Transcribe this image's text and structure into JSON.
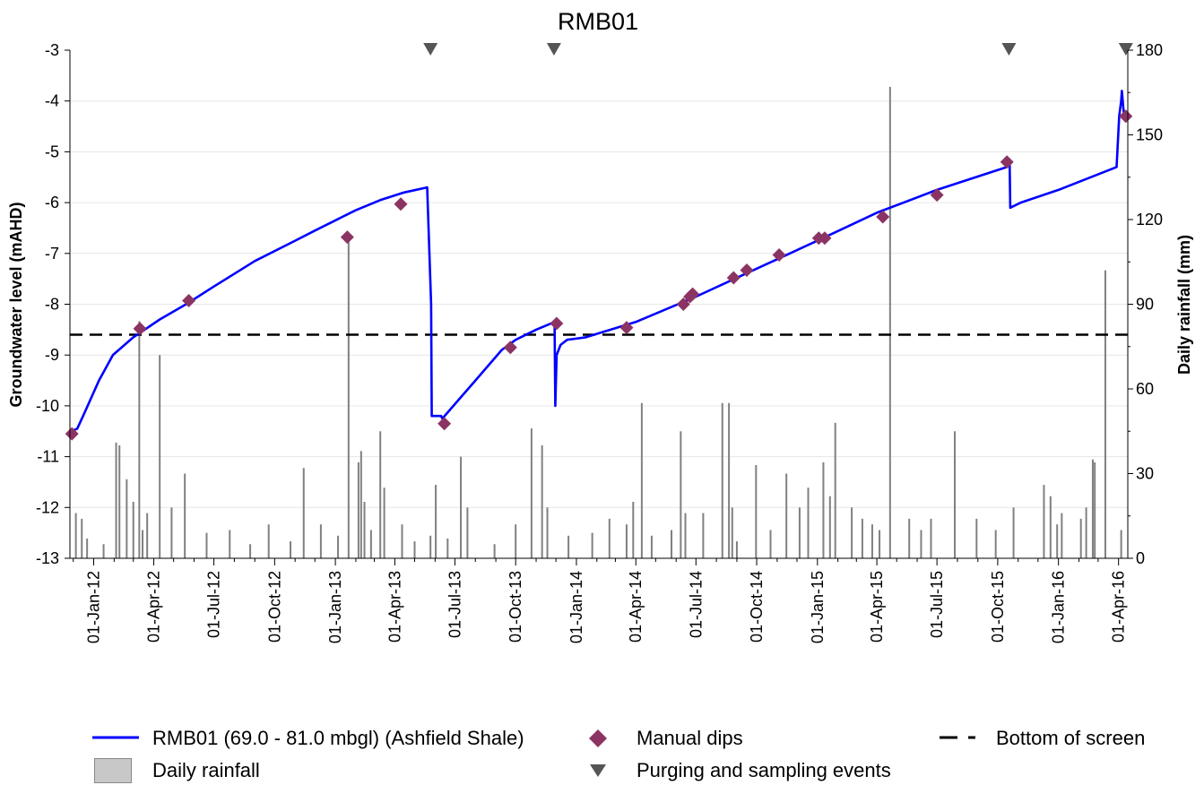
{
  "chart_data": {
    "type": "line",
    "title": "RMB01",
    "ylabel": "Groundwater level (mAHD)",
    "y2label": "Daily rainfall (mm)",
    "ylim": [
      -13,
      -3
    ],
    "y2lim": [
      0,
      180
    ],
    "yticks": [
      "-3",
      "-4",
      "-5",
      "-6",
      "-7",
      "-8",
      "-9",
      "-10",
      "-11",
      "-12",
      "-13"
    ],
    "y2ticks": [
      "180",
      "150",
      "120",
      "90",
      "60",
      "30",
      "0"
    ],
    "xlim": [
      "2011-11-26",
      "2016-04-15"
    ],
    "xticks": [
      "01-Jan-12",
      "01-Apr-12",
      "01-Jul-12",
      "01-Oct-12",
      "01-Jan-13",
      "01-Apr-13",
      "01-Jul-13",
      "01-Oct-13",
      "01-Jan-14",
      "01-Apr-14",
      "01-Jul-14",
      "01-Oct-14",
      "01-Jan-15",
      "01-Apr-15",
      "01-Jul-15",
      "01-Oct-15",
      "01-Jan-16",
      "01-Apr-16"
    ],
    "grid": "horizontal",
    "legend_position": "bottom",
    "series": [
      {
        "name": "RMB01 (69.0 - 81.0 mbgl) (Ashfield Shale)",
        "color": "#0000ff",
        "kind": "line",
        "x": [
          "2011-11-27",
          "2011-12-07",
          "2011-12-16",
          "2012-01-09",
          "2012-01-30",
          "2012-03-01",
          "2012-04-10",
          "2012-05-20",
          "2012-07-01",
          "2012-09-01",
          "2012-11-01",
          "2012-12-01",
          "2013-01-01",
          "2013-02-01",
          "2013-03-10",
          "2013-04-15",
          "2013-05-20",
          "2013-05-26",
          "2013-05-27",
          "2013-06-10",
          "2013-06-12",
          "2013-08-01",
          "2013-09-10",
          "2013-10-01",
          "2013-11-01",
          "2013-11-29",
          "2013-11-30",
          "2013-12-02",
          "2013-12-08",
          "2013-12-18",
          "2014-01-15",
          "2014-04-01",
          "2014-07-01",
          "2014-10-01",
          "2015-01-01",
          "2015-04-01",
          "2015-07-01",
          "2015-10-15",
          "2015-10-19",
          "2015-10-20",
          "2015-11-05",
          "2016-01-01",
          "2016-03-29",
          "2016-04-02",
          "2016-04-05",
          "2016-04-06",
          "2016-04-08",
          "2016-04-10"
        ],
        "y": [
          -10.5,
          -10.45,
          -10.2,
          -9.5,
          -9.0,
          -8.65,
          -8.3,
          -8.0,
          -7.65,
          -7.15,
          -6.75,
          -6.55,
          -6.35,
          -6.15,
          -5.95,
          -5.8,
          -5.7,
          -8.0,
          -10.2,
          -10.2,
          -10.25,
          -9.5,
          -8.9,
          -8.7,
          -8.5,
          -8.35,
          -10.0,
          -9.0,
          -8.8,
          -8.7,
          -8.65,
          -8.35,
          -7.85,
          -7.3,
          -6.75,
          -6.2,
          -5.75,
          -5.3,
          -5.2,
          -6.1,
          -6.0,
          -5.75,
          -5.3,
          -4.3,
          -4.0,
          -3.8,
          -4.1,
          -4.35
        ]
      },
      {
        "name": "Manual dips",
        "color": "#8b3464",
        "kind": "scatter",
        "x": [
          "2011-11-29",
          "2012-03-11",
          "2012-05-24",
          "2013-01-19",
          "2013-04-10",
          "2013-06-15",
          "2013-09-23",
          "2013-12-02",
          "2014-03-18",
          "2014-06-12",
          "2014-06-22",
          "2014-06-26",
          "2014-08-27",
          "2014-09-16",
          "2014-11-04",
          "2015-01-03",
          "2015-01-12",
          "2015-04-10",
          "2015-07-01",
          "2015-10-15",
          "2016-04-12"
        ],
        "y": [
          -10.55,
          -8.48,
          -7.93,
          -6.68,
          -6.03,
          -10.35,
          -8.85,
          -8.38,
          -8.46,
          -8.0,
          -7.85,
          -7.8,
          -7.48,
          -7.33,
          -7.03,
          -6.7,
          -6.7,
          -6.28,
          -5.85,
          -5.2,
          -4.3
        ]
      },
      {
        "name": "Bottom of screen",
        "color": "#000000",
        "kind": "hline",
        "y": -8.6
      },
      {
        "name": "Daily rainfall",
        "color": "#808080",
        "kind": "bar",
        "axis": "right",
        "x": [
          "2011-12-05",
          "2011-12-14",
          "2011-12-22",
          "2012-01-16",
          "2012-02-04",
          "2012-02-09",
          "2012-02-20",
          "2012-03-01",
          "2012-03-10",
          "2012-03-15",
          "2012-03-22",
          "2012-04-10",
          "2012-04-28",
          "2012-05-18",
          "2012-06-20",
          "2012-07-25",
          "2012-08-25",
          "2012-09-22",
          "2012-10-25",
          "2012-11-14",
          "2012-12-10",
          "2013-01-05",
          "2013-01-21",
          "2013-02-05",
          "2013-02-09",
          "2013-02-14",
          "2013-02-24",
          "2013-03-10",
          "2013-03-16",
          "2013-04-12",
          "2013-05-01",
          "2013-05-25",
          "2013-06-02",
          "2013-06-20",
          "2013-07-10",
          "2013-07-20",
          "2013-08-30",
          "2013-10-01",
          "2013-10-25",
          "2013-11-10",
          "2013-11-18",
          "2013-12-20",
          "2014-01-25",
          "2014-02-20",
          "2014-03-18",
          "2014-03-28",
          "2014-04-10",
          "2014-04-25",
          "2014-05-25",
          "2014-06-08",
          "2014-06-15",
          "2014-07-12",
          "2014-08-10",
          "2014-08-20",
          "2014-08-25",
          "2014-09-01",
          "2014-09-30",
          "2014-10-22",
          "2014-11-15",
          "2014-12-05",
          "2014-12-18",
          "2015-01-10",
          "2015-01-20",
          "2015-01-28",
          "2015-02-22",
          "2015-03-10",
          "2015-03-25",
          "2015-04-05",
          "2015-04-21",
          "2015-05-20",
          "2015-06-07",
          "2015-06-22",
          "2015-07-28",
          "2015-08-30",
          "2015-09-28",
          "2015-10-25",
          "2015-12-10",
          "2015-12-20",
          "2015-12-30",
          "2016-01-06",
          "2016-02-04",
          "2016-02-12",
          "2016-02-22",
          "2016-02-25",
          "2016-03-12",
          "2016-04-05"
        ],
        "values": [
          16,
          14,
          7,
          5,
          41,
          40,
          28,
          20,
          84,
          10,
          16,
          72,
          18,
          30,
          9,
          10,
          5,
          12,
          6,
          32,
          12,
          8,
          114,
          34,
          38,
          20,
          10,
          45,
          25,
          12,
          6,
          8,
          26,
          7,
          36,
          18,
          5,
          12,
          46,
          40,
          18,
          8,
          9,
          14,
          12,
          20,
          55,
          8,
          10,
          45,
          16,
          16,
          55,
          55,
          18,
          6,
          33,
          10,
          30,
          18,
          25,
          34,
          22,
          48,
          18,
          14,
          12,
          10,
          167,
          14,
          10,
          14,
          45,
          14,
          10,
          18,
          26,
          22,
          12,
          16,
          14,
          18,
          35,
          34,
          102,
          10
        ]
      },
      {
        "name": "Purging and sampling events",
        "color": "#555555",
        "kind": "marker-top",
        "x": [
          "2013-05-25",
          "2013-11-28",
          "2015-10-18",
          "2016-04-12"
        ]
      }
    ]
  },
  "legend": {
    "items": [
      {
        "label": "RMB01 (69.0 - 81.0 mbgl) (Ashfield Shale)",
        "symbol": "line"
      },
      {
        "label": "Manual dips",
        "symbol": "diamond"
      },
      {
        "label": "Bottom of screen",
        "symbol": "dash"
      },
      {
        "label": "Daily rainfall",
        "symbol": "box"
      },
      {
        "label": "Purging and sampling events",
        "symbol": "triangle"
      }
    ]
  }
}
